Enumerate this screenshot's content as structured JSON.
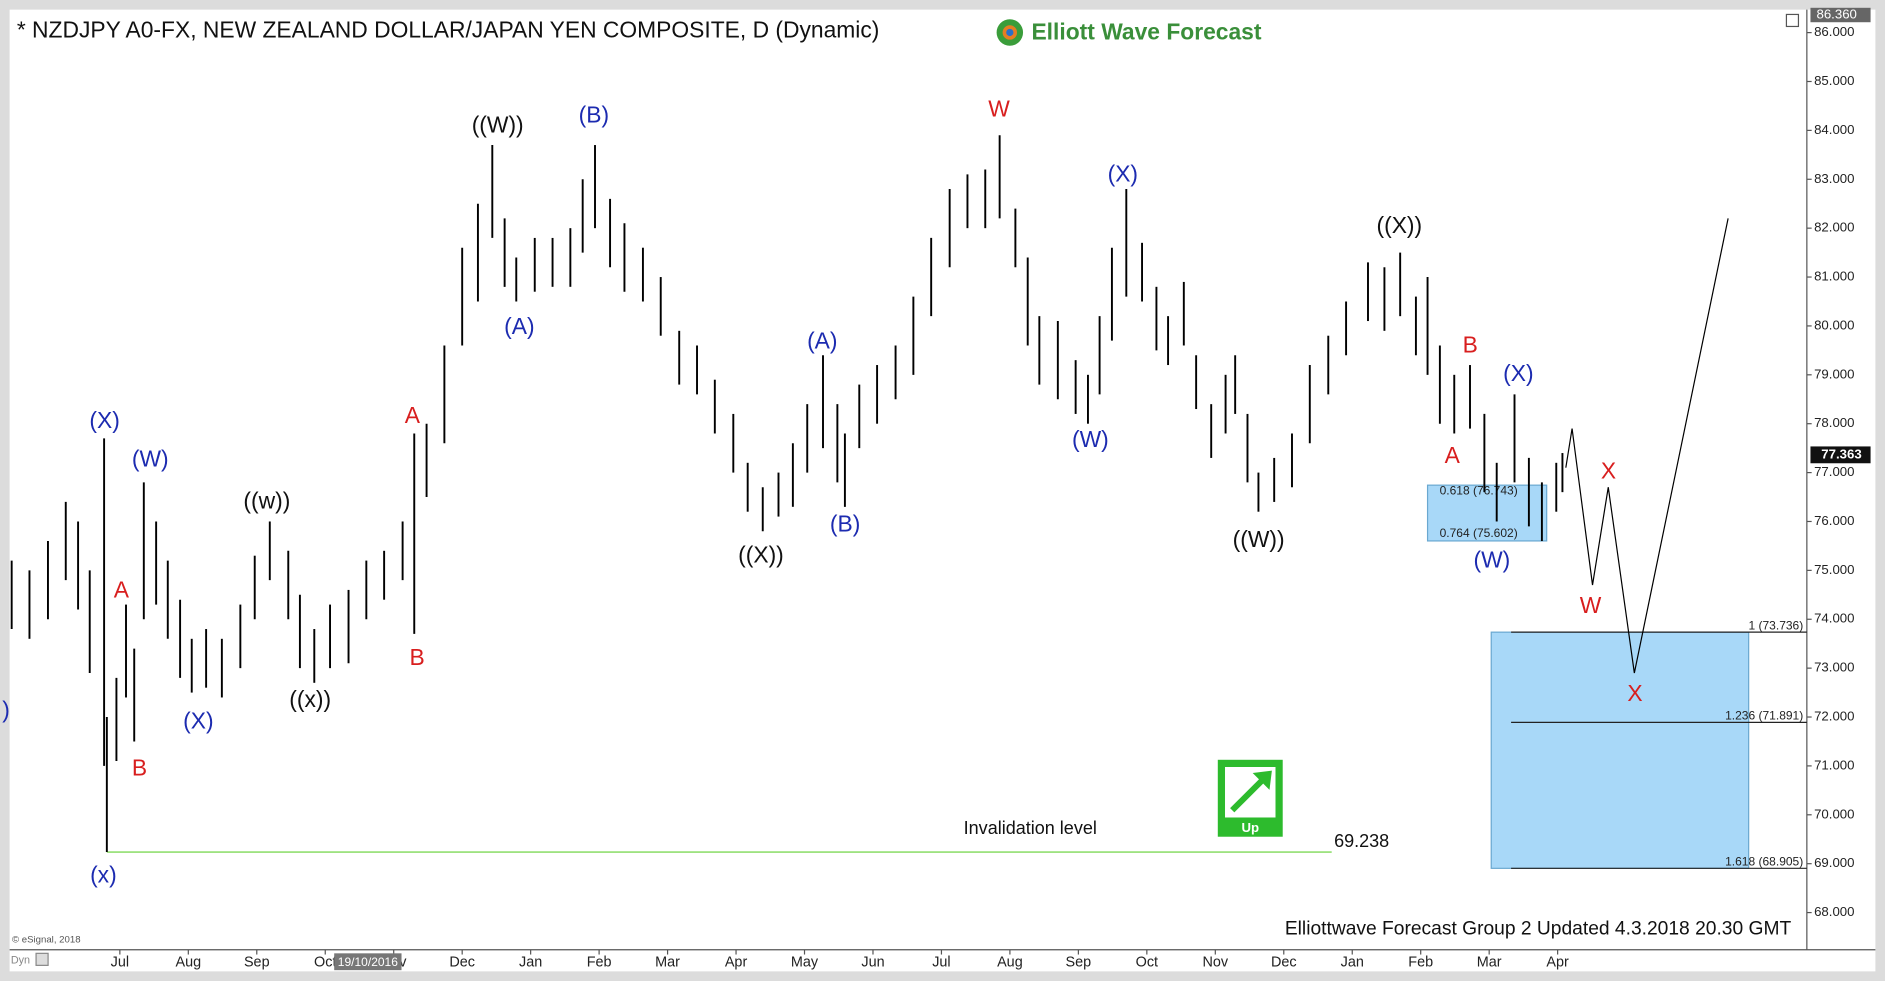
{
  "header": {
    "title": "* NZDJPY A0-FX, NEW ZEALAND DOLLAR/JAPAN YEN COMPOSITE, D (Dynamic)",
    "logo": "Elliott Wave Forecast"
  },
  "footer": {
    "updated": "Elliottwave Forecast Group 2 Updated 4.3.2018 20.30 GMT",
    "copyright": "© eSignal, 2018",
    "mode": "Dyn",
    "crosshair_date": "19/10/2016"
  },
  "chart_data": {
    "type": "ohlc",
    "xlim": [
      -1.61,
      24.64
    ],
    "ylim": [
      67.24,
      86.47
    ],
    "xticks": [
      {
        "value": 0,
        "label": "Jul"
      },
      {
        "value": 1,
        "label": "Aug"
      },
      {
        "value": 2,
        "label": "Sep"
      },
      {
        "value": 3,
        "label": "Oct"
      },
      {
        "value": 4,
        "label": "Nov"
      },
      {
        "value": 5,
        "label": "Dec"
      },
      {
        "value": 6,
        "label": "Jan"
      },
      {
        "value": 7,
        "label": "Feb"
      },
      {
        "value": 8,
        "label": "Mar"
      },
      {
        "value": 9,
        "label": "Apr"
      },
      {
        "value": 10,
        "label": "May"
      },
      {
        "value": 11,
        "label": "Jun"
      },
      {
        "value": 12,
        "label": "Jul"
      },
      {
        "value": 13,
        "label": "Aug"
      },
      {
        "value": 14,
        "label": "Sep"
      },
      {
        "value": 15,
        "label": "Oct"
      },
      {
        "value": 16,
        "label": "Nov"
      },
      {
        "value": 17,
        "label": "Dec"
      },
      {
        "value": 18,
        "label": "Jan"
      },
      {
        "value": 19,
        "label": "Feb"
      },
      {
        "value": 20,
        "label": "Mar"
      },
      {
        "value": 21,
        "label": "Apr"
      }
    ],
    "yticks": [
      {
        "value": 68,
        "label": "68.000"
      },
      {
        "value": 69,
        "label": "69.000"
      },
      {
        "value": 70,
        "label": "70.000"
      },
      {
        "value": 71,
        "label": "71.000"
      },
      {
        "value": 72,
        "label": "72.000"
      },
      {
        "value": 73,
        "label": "73.000"
      },
      {
        "value": 74,
        "label": "74.000"
      },
      {
        "value": 75,
        "label": "75.000"
      },
      {
        "value": 76,
        "label": "76.000"
      },
      {
        "value": 77,
        "label": "77.000"
      },
      {
        "value": 78,
        "label": "78.000"
      },
      {
        "value": 79,
        "label": "79.000"
      },
      {
        "value": 80,
        "label": "80.000"
      },
      {
        "value": 81,
        "label": "81.000"
      },
      {
        "value": 82,
        "label": "82.000"
      },
      {
        "value": 83,
        "label": "83.000"
      },
      {
        "value": 84,
        "label": "84.000"
      },
      {
        "value": 85,
        "label": "85.000"
      },
      {
        "value": 86,
        "label": "86.000"
      }
    ],
    "scale_top": {
      "value": 86.36,
      "label": "86.360"
    },
    "current_price": 77.363,
    "bar_color": "#000000",
    "bars": {
      "x": [
        -1.58,
        -1.32,
        -1.05,
        -0.79,
        -0.61,
        -0.44,
        -0.23,
        -0.19,
        -0.05,
        0.09,
        0.21,
        0.35,
        0.53,
        0.7,
        0.88,
        1.05,
        1.26,
        1.49,
        1.76,
        1.97,
        2.19,
        2.46,
        2.63,
        2.84,
        3.07,
        3.34,
        3.6,
        3.86,
        4.13,
        4.3,
        4.48,
        4.74,
        5.0,
        5.23,
        5.44,
        5.62,
        5.79,
        6.06,
        6.32,
        6.58,
        6.76,
        6.94,
        7.16,
        7.37,
        7.64,
        7.9,
        8.17,
        8.43,
        8.69,
        8.96,
        9.17,
        9.39,
        9.62,
        9.83,
        10.04,
        10.27,
        10.48,
        10.59,
        10.8,
        11.06,
        11.33,
        11.59,
        11.85,
        12.12,
        12.38,
        12.64,
        12.85,
        13.08,
        13.26,
        13.43,
        13.7,
        13.96,
        14.14,
        14.31,
        14.49,
        14.7,
        14.93,
        15.14,
        15.31,
        15.54,
        15.72,
        15.94,
        16.15,
        16.29,
        16.47,
        16.63,
        16.86,
        17.12,
        17.38,
        17.65,
        17.91,
        18.23,
        18.47,
        18.7,
        18.93,
        19.1,
        19.28,
        19.49,
        19.72,
        19.93,
        20.11,
        20.37,
        20.58,
        20.77,
        20.98,
        21.07
      ],
      "high": [
        75.2,
        75.0,
        75.6,
        76.4,
        76.0,
        75.0,
        77.7,
        72.0,
        72.8,
        74.3,
        73.4,
        76.8,
        76.0,
        75.2,
        74.4,
        73.6,
        73.8,
        73.6,
        74.3,
        75.3,
        76.0,
        75.4,
        74.5,
        73.8,
        74.3,
        74.6,
        75.2,
        75.4,
        76.0,
        77.8,
        78.0,
        79.6,
        81.6,
        82.5,
        83.7,
        82.2,
        81.4,
        81.8,
        81.8,
        82.0,
        83.0,
        83.7,
        82.6,
        82.1,
        81.6,
        81.0,
        79.9,
        79.6,
        78.9,
        78.2,
        77.2,
        76.7,
        77.0,
        77.6,
        78.4,
        79.4,
        78.4,
        77.8,
        78.8,
        79.2,
        79.6,
        80.6,
        81.8,
        82.8,
        83.1,
        83.2,
        83.9,
        82.4,
        81.4,
        80.2,
        80.1,
        79.3,
        79.0,
        80.2,
        81.6,
        82.8,
        81.7,
        80.8,
        80.2,
        80.9,
        79.4,
        78.4,
        79.0,
        79.4,
        78.2,
        77.0,
        77.3,
        77.8,
        79.2,
        79.8,
        80.5,
        81.3,
        81.2,
        81.5,
        80.6,
        81.0,
        79.6,
        79.0,
        79.2,
        78.2,
        77.2,
        78.6,
        77.3,
        76.8,
        77.2,
        77.4
      ],
      "low": [
        73.8,
        73.6,
        74.0,
        74.8,
        74.2,
        72.9,
        71.0,
        69.24,
        71.1,
        72.4,
        71.5,
        74.0,
        74.3,
        73.6,
        72.8,
        72.5,
        72.6,
        72.4,
        73.0,
        74.0,
        74.8,
        74.0,
        73.0,
        72.7,
        73.0,
        73.1,
        74.0,
        74.4,
        74.8,
        73.7,
        76.5,
        77.6,
        79.6,
        80.5,
        81.8,
        80.8,
        80.5,
        80.7,
        80.8,
        80.8,
        81.5,
        82.0,
        81.2,
        80.7,
        80.5,
        79.8,
        78.8,
        78.6,
        77.8,
        77.0,
        76.2,
        75.8,
        76.1,
        76.3,
        77.0,
        77.5,
        76.8,
        76.3,
        77.5,
        78.0,
        78.5,
        79.0,
        80.2,
        81.2,
        82.0,
        82.0,
        82.2,
        81.2,
        79.6,
        78.8,
        78.5,
        78.2,
        78.0,
        78.6,
        79.7,
        80.6,
        80.5,
        79.5,
        79.2,
        79.6,
        78.3,
        77.3,
        77.8,
        78.2,
        76.8,
        76.2,
        76.4,
        76.7,
        77.6,
        78.6,
        79.4,
        80.1,
        79.9,
        80.2,
        79.4,
        79.0,
        78.0,
        77.8,
        77.9,
        76.6,
        76.0,
        76.8,
        75.9,
        75.6,
        76.2,
        76.6
      ]
    },
    "projection": {
      "x": [
        21.12,
        21.21,
        21.51,
        21.74,
        22.12,
        23.49
      ],
      "y": [
        77.1,
        77.9,
        74.7,
        76.7,
        72.9,
        82.2
      ],
      "color": "#000000"
    },
    "invalidation": {
      "label": "Invalidation level",
      "value": 69.238,
      "x": [
        -0.19,
        17.7
      ],
      "color": "#7ed957"
    },
    "fib_small": {
      "x": [
        19.1,
        20.84
      ],
      "levels": [
        {
          "value": 76.743,
          "label": "0.618 (76.743)"
        },
        {
          "value": 75.602,
          "label": "0.764 (75.602)"
        }
      ]
    },
    "fib_big": {
      "x": [
        20.03,
        23.79
      ],
      "line_start": 20.32,
      "levels": [
        {
          "value": 73.736,
          "label": "1 (73.736)"
        },
        {
          "value": 71.891,
          "label": "1.236 (71.891)"
        },
        {
          "value": 68.905,
          "label": "1.618 (68.905)"
        }
      ]
    },
    "box_color": "#a8d8f8",
    "signal": "Up",
    "waves": [
      {
        "text": "(X)",
        "color": "#1c2bb0"
      },
      {
        "text": "(W)",
        "color": "#1c2bb0"
      },
      {
        "text": "A",
        "color": "#d81e1e"
      },
      {
        "text": "B",
        "color": "#d81e1e"
      },
      {
        "text": "((w))",
        "color": "#111111"
      },
      {
        "text": "(X)",
        "color": "#1c2bb0"
      },
      {
        "text": "((x))",
        "color": "#111111"
      },
      {
        "text": "A",
        "color": "#d81e1e"
      },
      {
        "text": "B",
        "color": "#d81e1e"
      },
      {
        "text": "((W))",
        "color": "#111111"
      },
      {
        "text": "(A)",
        "color": "#1c2bb0"
      },
      {
        "text": "(B)",
        "color": "#1c2bb0"
      },
      {
        "text": "((X))",
        "color": "#111111"
      },
      {
        "text": "(A)",
        "color": "#1c2bb0"
      },
      {
        "text": "(B)",
        "color": "#1c2bb0"
      },
      {
        "text": "W",
        "color": "#d81e1e"
      },
      {
        "text": "(X)",
        "color": "#1c2bb0"
      },
      {
        "text": "(W)",
        "color": "#1c2bb0"
      },
      {
        "text": "((W))",
        "color": "#111111"
      },
      {
        "text": "((X))",
        "color": "#111111"
      },
      {
        "text": "B",
        "color": "#d81e1e"
      },
      {
        "text": "(X)",
        "color": "#1c2bb0"
      },
      {
        "text": "A",
        "color": "#d81e1e"
      },
      {
        "text": "(W)",
        "color": "#1c2bb0"
      },
      {
        "text": "X",
        "color": "#d81e1e"
      },
      {
        "text": "W",
        "color": "#d81e1e"
      },
      {
        "text": "X",
        "color": "#d81e1e"
      },
      {
        "text": "(x)",
        "color": "#1c2bb0"
      },
      {
        "text": ")",
        "color": "#1c2bb0"
      }
    ]
  }
}
